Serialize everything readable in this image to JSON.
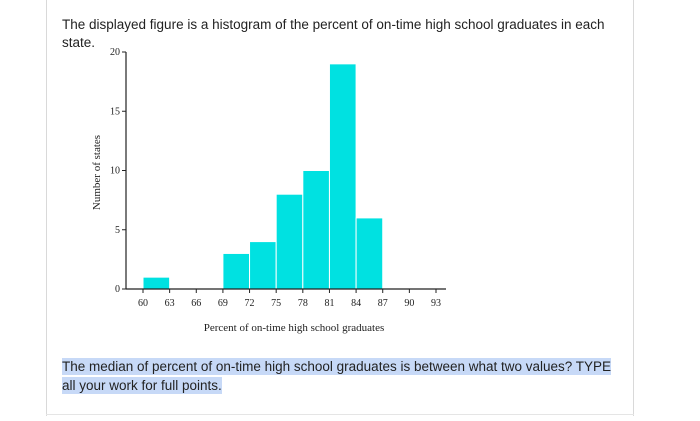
{
  "question": {
    "intro": "The displayed figure is a histogram of the percent of on-time high school graduates in each state.",
    "prompt": "The median of percent of on-time high school graduates is between what two values? TYPE all your work for full points."
  },
  "colors": {
    "bar_fill": "#00E1E1",
    "bar_stroke": "#FFFFFF",
    "highlight": "#C7D9F7"
  },
  "chart_data": {
    "type": "bar",
    "title": "",
    "xlabel": "Percent of on-time high school graduates",
    "ylabel": "Number of states",
    "bin_edges": [
      60,
      63,
      66,
      69,
      72,
      75,
      78,
      81,
      84,
      87,
      90,
      93
    ],
    "values": [
      1,
      0,
      0,
      3,
      4,
      8,
      10,
      19,
      6,
      0,
      0
    ],
    "bins": [
      {
        "x0": 60,
        "x1": 63,
        "count": 1
      },
      {
        "x0": 63,
        "x1": 66,
        "count": 0
      },
      {
        "x0": 66,
        "x1": 69,
        "count": 0
      },
      {
        "x0": 69,
        "x1": 72,
        "count": 3
      },
      {
        "x0": 72,
        "x1": 75,
        "count": 4
      },
      {
        "x0": 75,
        "x1": 78,
        "count": 8
      },
      {
        "x0": 78,
        "x1": 81,
        "count": 10
      },
      {
        "x0": 81,
        "x1": 84,
        "count": 19
      },
      {
        "x0": 84,
        "x1": 87,
        "count": 6
      },
      {
        "x0": 87,
        "x1": 90,
        "count": 0
      },
      {
        "x0": 90,
        "x1": 93,
        "count": 0
      }
    ],
    "x_ticks": [
      "60",
      "63",
      "66",
      "69",
      "72",
      "75",
      "78",
      "81",
      "84",
      "87",
      "90",
      "93"
    ],
    "y_ticks": [
      "0",
      "5",
      "10",
      "15",
      "20"
    ],
    "xlim": [
      60,
      93
    ],
    "ylim": [
      0,
      20
    ],
    "grid": false
  }
}
